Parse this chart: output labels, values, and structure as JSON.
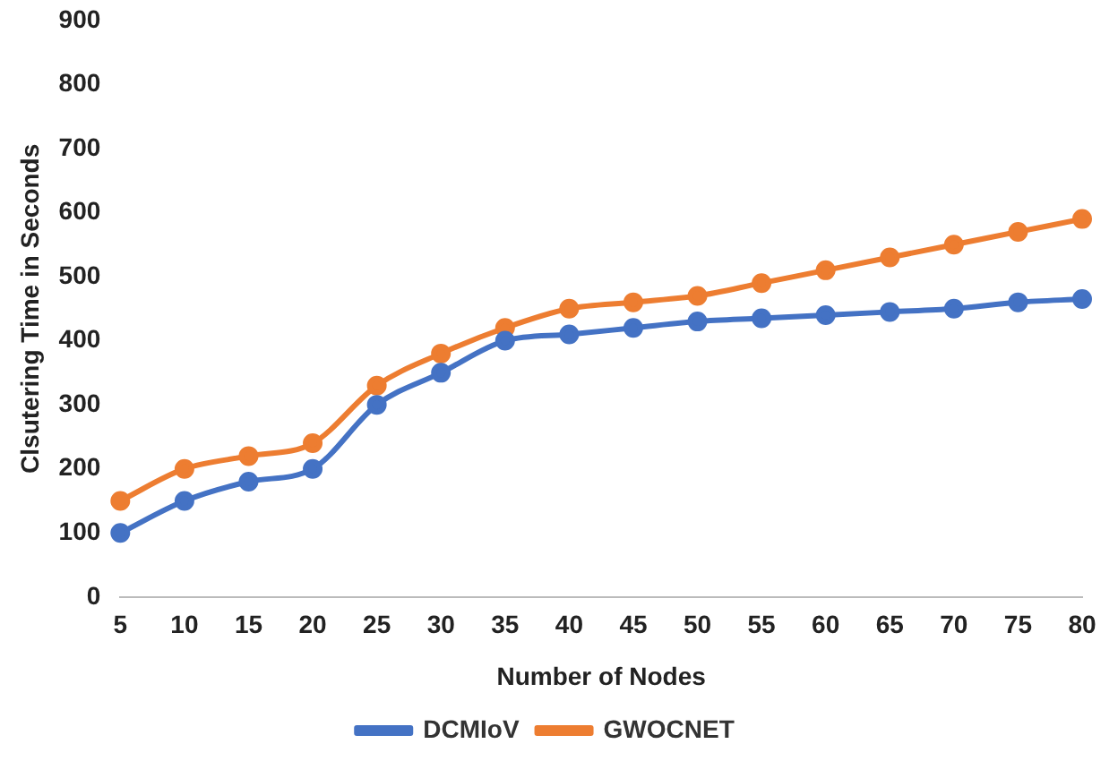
{
  "chart_data": {
    "type": "line",
    "xlabel": "Number of Nodes",
    "ylabel": "Clsutering Time in Seconds",
    "categories": [
      "5",
      "10",
      "15",
      "20",
      "25",
      "30",
      "35",
      "40",
      "45",
      "50",
      "55",
      "60",
      "65",
      "70",
      "75",
      "80"
    ],
    "series": [
      {
        "name": "DCMIoV",
        "color": "#4472c4",
        "values": [
          100,
          150,
          180,
          200,
          300,
          350,
          400,
          410,
          420,
          430,
          435,
          440,
          445,
          450,
          460,
          465
        ]
      },
      {
        "name": "GWOCNET",
        "color": "#ed7d31",
        "values": [
          150,
          200,
          220,
          240,
          330,
          380,
          420,
          450,
          460,
          470,
          490,
          510,
          530,
          550,
          570,
          590
        ]
      }
    ],
    "ylim": [
      0,
      900
    ],
    "yticks": [
      0,
      100,
      200,
      300,
      400,
      500,
      600,
      700,
      800,
      900
    ],
    "legend": "bottom",
    "marker": "circle"
  }
}
